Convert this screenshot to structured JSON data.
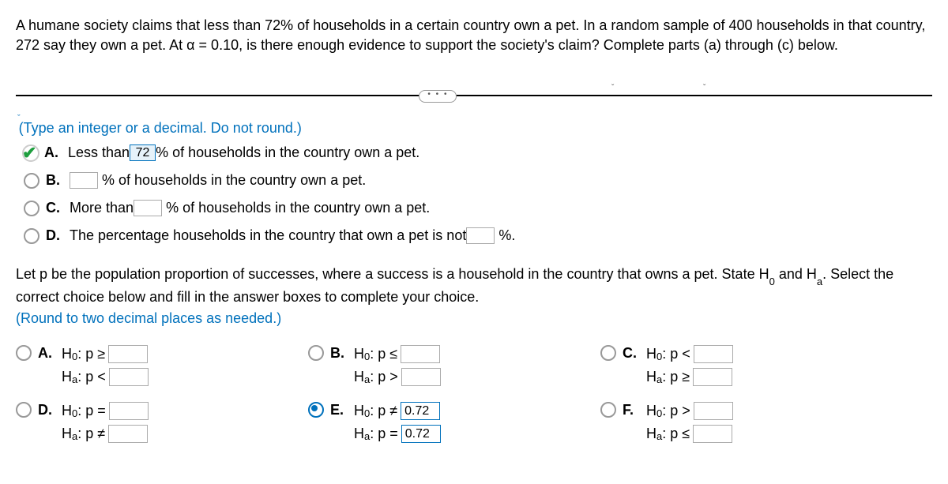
{
  "problem": "A humane society claims that less than 72% of households in a certain country own a pet. In a random sample of 400 households in that country, 272 say they own a pet. At α = 0.10, is there enough evidence to support the society's claim? Complete parts (a) through (c) below.",
  "instruction1": "(Type an integer or a decimal. Do not round.)",
  "part1": {
    "A": {
      "pre": "Less than ",
      "val": "72",
      "post": " % of households in the country own a pet."
    },
    "B": {
      "pre": "",
      "post": "% of households in the country own a pet."
    },
    "C": {
      "pre": "More than ",
      "post": "% of households in the country own a pet."
    },
    "D": {
      "pre": "The percentage households in the country that own a pet is not ",
      "post": "%."
    }
  },
  "part2_q1": "Let p be the population proportion of successes, where a success is a household in the country that owns a pet. State H",
  "part2_q2": " and H",
  "part2_q3": ". Select the correct choice below and fill in the answer boxes to complete your choice.",
  "instruction2": "(Round to two decimal places as needed.)",
  "hyp": {
    "A": {
      "h0_sym": "≥",
      "ha_sym": "<"
    },
    "B": {
      "h0_sym": "≤",
      "ha_sym": ">"
    },
    "C": {
      "h0_sym": "<",
      "ha_sym": "≥"
    },
    "D": {
      "h0_sym": "=",
      "ha_sym": "≠"
    },
    "E": {
      "h0_sym": "≠",
      "ha_sym": "=",
      "h0_val": "0.72",
      "ha_val": "0.72"
    },
    "F": {
      "h0_sym": ">",
      "ha_sym": "≤"
    }
  },
  "letters": {
    "A": "A.",
    "B": "B.",
    "C": "C.",
    "D": "D.",
    "E": "E.",
    "F": "F."
  },
  "hlabel": {
    "h0_pre": "H",
    "h0_sub": "0",
    "h0_post": ": p",
    "ha_pre": "H",
    "ha_sub": "a",
    "ha_post": ": p"
  }
}
